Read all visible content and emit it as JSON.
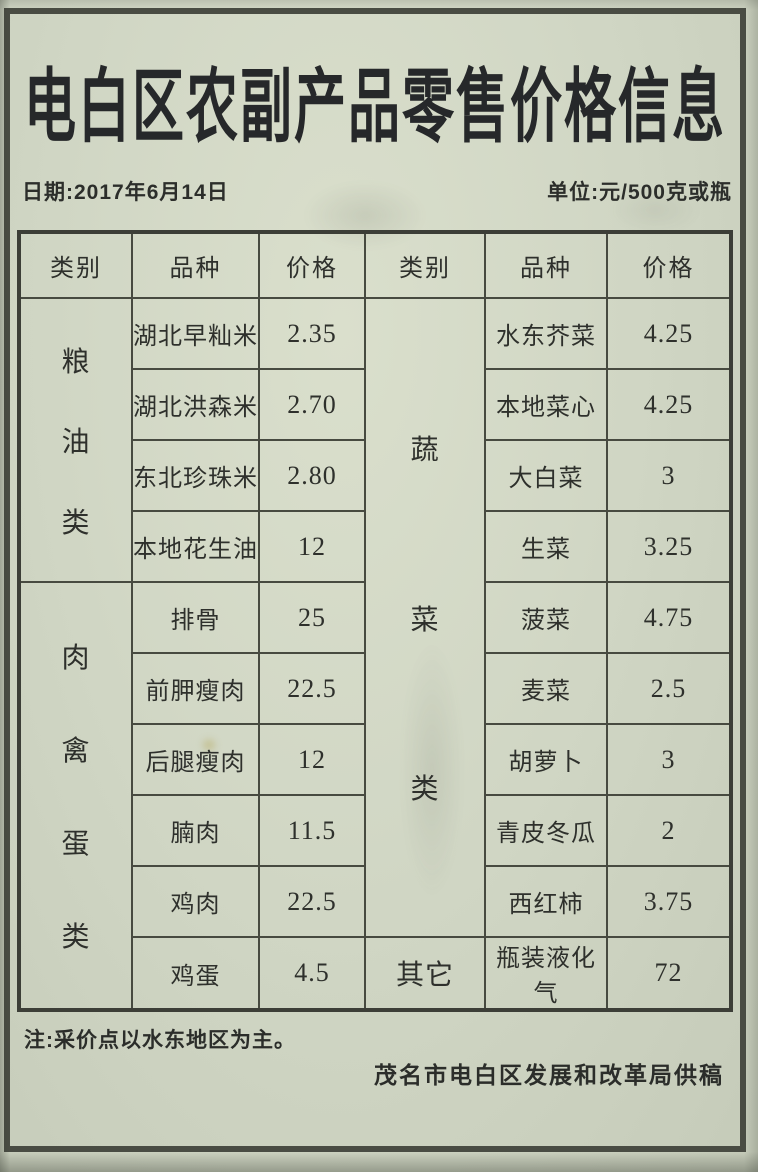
{
  "title": "电白区农副产品零售价格信息",
  "meta": {
    "date": "日期:2017年6月14日",
    "unit": "单位:元/500克或瓶"
  },
  "table": {
    "headers": [
      "类别",
      "品种",
      "价格",
      "类别",
      "品种",
      "价格"
    ],
    "left": {
      "categories": [
        {
          "label": "粮油类",
          "rowspan": 4
        },
        {
          "label": "肉禽蛋类",
          "rowspan": 6
        }
      ],
      "rows": [
        {
          "name": "湖北早籼米",
          "price": "2.35"
        },
        {
          "name": "湖北洪森米",
          "price": "2.70"
        },
        {
          "name": "东北珍珠米",
          "price": "2.80"
        },
        {
          "name": "本地花生油",
          "price": "12"
        },
        {
          "name": "排骨",
          "price": "25"
        },
        {
          "name": "前胛瘦肉",
          "price": "22.5"
        },
        {
          "name": "后腿瘦肉",
          "price": "12"
        },
        {
          "name": "腩肉",
          "price": "11.5"
        },
        {
          "name": "鸡肉",
          "price": "22.5"
        },
        {
          "name": "鸡蛋",
          "price": "4.5"
        }
      ]
    },
    "right": {
      "categories": [
        {
          "label": "蔬菜类",
          "rowspan": 9
        },
        {
          "label": "其它",
          "rowspan": 1
        }
      ],
      "rows": [
        {
          "name": "水东芥菜",
          "price": "4.25"
        },
        {
          "name": "本地菜心",
          "price": "4.25"
        },
        {
          "name": "大白菜",
          "price": "3"
        },
        {
          "name": "生菜",
          "price": "3.25"
        },
        {
          "name": "菠菜",
          "price": "4.75"
        },
        {
          "name": "麦菜",
          "price": "2.5"
        },
        {
          "name": "胡萝卜",
          "price": "3"
        },
        {
          "name": "青皮冬瓜",
          "price": "2"
        },
        {
          "name": "西红柿",
          "price": "3.75"
        },
        {
          "name": "瓶装液化气",
          "price": "72"
        }
      ]
    }
  },
  "footer": {
    "note": "注:采价点以水东地区为主。",
    "credit": "茂名市电白区发展和改革局供稿"
  }
}
